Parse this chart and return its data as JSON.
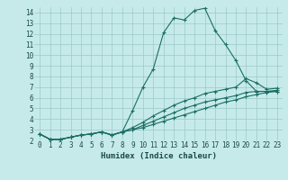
{
  "xlabel": "Humidex (Indice chaleur)",
  "ylabel": "",
  "xlim": [
    -0.5,
    23.5
  ],
  "ylim": [
    2,
    14.5
  ],
  "xticks": [
    0,
    1,
    2,
    3,
    4,
    5,
    6,
    7,
    8,
    9,
    10,
    11,
    12,
    13,
    14,
    15,
    16,
    17,
    18,
    19,
    20,
    21,
    22,
    23
  ],
  "yticks": [
    2,
    3,
    4,
    5,
    6,
    7,
    8,
    9,
    10,
    11,
    12,
    13,
    14
  ],
  "bg_color": "#c6eaea",
  "line_color": "#1a6e64",
  "grid_color": "#9cc8c8",
  "lines": [
    [
      2.6,
      2.1,
      2.1,
      2.3,
      2.5,
      2.6,
      2.8,
      2.5,
      2.8,
      4.8,
      7.0,
      8.7,
      12.1,
      13.5,
      13.3,
      14.2,
      14.4,
      12.3,
      11.0,
      9.5,
      7.6,
      6.6,
      6.6,
      6.6
    ],
    [
      2.6,
      2.1,
      2.1,
      2.3,
      2.5,
      2.6,
      2.8,
      2.5,
      2.8,
      3.2,
      3.7,
      4.3,
      4.8,
      5.3,
      5.7,
      6.0,
      6.4,
      6.6,
      6.8,
      7.0,
      7.8,
      7.4,
      6.8,
      6.9
    ],
    [
      2.6,
      2.1,
      2.1,
      2.3,
      2.5,
      2.6,
      2.8,
      2.5,
      2.8,
      3.0,
      3.4,
      3.8,
      4.2,
      4.6,
      5.0,
      5.3,
      5.6,
      5.8,
      6.0,
      6.2,
      6.5,
      6.6,
      6.6,
      6.7
    ],
    [
      2.6,
      2.1,
      2.1,
      2.3,
      2.5,
      2.6,
      2.8,
      2.5,
      2.8,
      3.0,
      3.2,
      3.5,
      3.8,
      4.1,
      4.4,
      4.7,
      5.0,
      5.3,
      5.6,
      5.8,
      6.1,
      6.3,
      6.5,
      6.6
    ]
  ],
  "marker": "+",
  "markersize": 3,
  "linewidth": 0.8,
  "tick_fontsize": 5.5,
  "xlabel_fontsize": 6.5
}
